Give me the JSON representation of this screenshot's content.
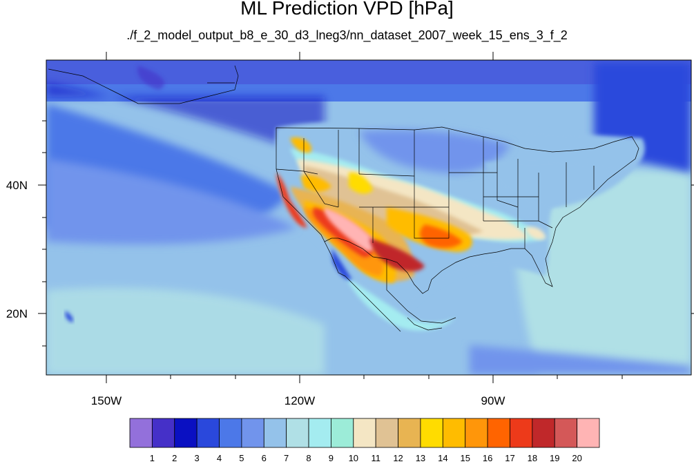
{
  "title": "ML Prediction VPD [hPa]",
  "subtitle": "./f_2_model_output_b8_e_30_d3_lneg3/nn_dataset_2007_week_15_ens_3_f_2",
  "map": {
    "lon_labels": [
      "150W",
      "120W",
      "90W"
    ],
    "lat_labels": [
      "40N",
      "20N"
    ],
    "extent": {
      "lon_min": -159.5,
      "lon_max": -60.5,
      "lat_min": 10.5,
      "lat_max": 59.5
    }
  },
  "colorbar": {
    "labels": [
      "1",
      "2",
      "3",
      "4",
      "5",
      "6",
      "7",
      "8",
      "9",
      "10",
      "11",
      "12",
      "13",
      "14",
      "15",
      "16",
      "17",
      "18",
      "19",
      "20"
    ],
    "colors": [
      "#9370db",
      "#4530c8",
      "#0a10c2",
      "#2a48dc",
      "#4c78e8",
      "#7194ec",
      "#94c2ea",
      "#b0e0e6",
      "#a4ecf0",
      "#9cecd8",
      "#f4e6c4",
      "#e0c294",
      "#e8b452",
      "#ffdc00",
      "#ffbc00",
      "#ff960a",
      "#ff6400",
      "#ed3a1a",
      "#c0282a",
      "#d45858",
      "#ffb4b4"
    ]
  }
}
